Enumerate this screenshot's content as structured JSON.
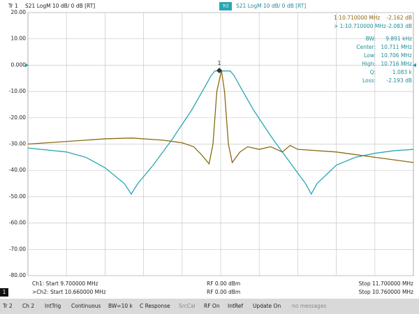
{
  "trace_headers": [
    {
      "id": "Tr 1",
      "text": "S21 LogM 10 dB/ 0 dB [RT]"
    },
    {
      "id": "Tr2",
      "text": "S21 LogM 10 dB/ 0 dB [RT]"
    }
  ],
  "marker_label": "1",
  "marker_readouts": [
    {
      "label": "1:10.710000 MHz",
      "value": "-2.162 dB"
    },
    {
      "label": "> 1:10.710000 MHz",
      "value": "-2.083 dB"
    },
    {
      "label": "BW:",
      "value": "9.891 kHz"
    },
    {
      "label": "Center:",
      "value": "10.711 MHz"
    },
    {
      "label": "Low:",
      "value": "10.706 MHz"
    },
    {
      "label": "High:",
      "value": "10.716 MHz"
    },
    {
      "label": "Q:",
      "value": "1.083 k"
    },
    {
      "label": "Loss:",
      "value": "-2.193 dB"
    }
  ],
  "channel_rows": [
    {
      "start": "Ch1: Start 9.700000 MHz",
      "power": "RF 0.00 dBm",
      "stop": "Stop 11.700000 MHz"
    },
    {
      "badge": "1",
      "start": ">Ch2: Start 10.660000 MHz",
      "power": "RF 0.00 dBm",
      "stop": "Stop 10.760000 MHz"
    }
  ],
  "softkeys": [
    "Tr 2",
    "Ch 2",
    "IntTrig",
    "Continuous",
    "BW=10 k",
    "C Response",
    "SrcCal",
    "RF On",
    "IntRef",
    "Update On",
    "no messages"
  ],
  "chart_data": [
    {
      "type": "line",
      "xlim": [
        9.7,
        11.7
      ],
      "ylim": [
        -80,
        20
      ],
      "yticks": [
        {
          "value": 20,
          "label": "20.00"
        },
        {
          "value": 10,
          "label": "10.00"
        },
        {
          "value": 0,
          "label": "0.000"
        },
        {
          "value": -10,
          "label": "-10.00"
        },
        {
          "value": -20,
          "label": "-20.00"
        },
        {
          "value": -30,
          "label": "-30.00"
        },
        {
          "value": -40,
          "label": "-40.00"
        },
        {
          "value": -50,
          "label": "-50.00"
        },
        {
          "value": -60,
          "label": "-60.00"
        },
        {
          "value": -70,
          "label": "-70.00"
        },
        {
          "value": -80,
          "label": "-80.00"
        }
      ],
      "grid": true,
      "x": [
        9.7,
        9.9,
        10.0,
        10.1,
        10.2,
        10.236,
        10.27,
        10.35,
        10.45,
        10.55,
        10.62,
        10.65,
        10.67,
        10.75,
        10.77,
        10.8,
        10.87,
        10.97,
        11.07,
        11.14,
        11.17,
        11.2,
        11.3,
        11.4,
        11.5,
        11.6,
        11.7
      ],
      "series": [
        {
          "color": "#2aa6b3",
          "values": [
            -31.5,
            -33,
            -35,
            -39,
            -45,
            -49,
            -45,
            -38,
            -28,
            -17,
            -8,
            -4,
            -2.2,
            -2.2,
            -4,
            -8,
            -17,
            -28,
            -38,
            -45,
            -49,
            -45,
            -38,
            -35,
            -33.5,
            -32.5,
            -32
          ]
        }
      ]
    },
    {
      "type": "line",
      "xlim": [
        10.66,
        10.76
      ],
      "ylim": [
        -80,
        20
      ],
      "x": [
        10.66,
        10.67,
        10.68,
        10.687,
        10.695,
        10.7,
        10.703,
        10.705,
        10.707,
        10.708,
        10.709,
        10.7102,
        10.711,
        10.712,
        10.713,
        10.715,
        10.717,
        10.72,
        10.723,
        10.726,
        10.728,
        10.73,
        10.74,
        10.75,
        10.76
      ],
      "series": [
        {
          "color": "#8a6a10",
          "values": [
            -30,
            -29,
            -28,
            -27.7,
            -28.5,
            -29.5,
            -31,
            -34,
            -37.5,
            -30,
            -10,
            -2,
            -10,
            -30,
            -37,
            -33,
            -31,
            -32,
            -31,
            -33,
            -30.5,
            -32,
            -33,
            -35,
            -37
          ]
        }
      ]
    }
  ]
}
